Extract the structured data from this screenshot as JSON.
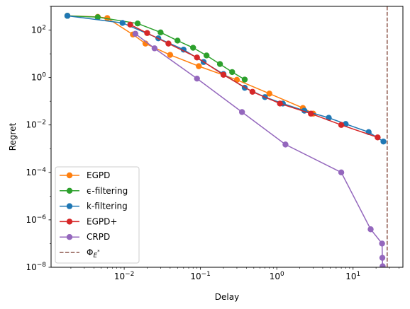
{
  "chart_data": {
    "type": "line",
    "xlabel": "Delay",
    "ylabel": "Regret",
    "xscale": "log",
    "yscale": "log",
    "xlim": [
      0.0011,
      45
    ],
    "ylim": [
      1e-08,
      1000
    ],
    "grid": false,
    "legend_position": "lower-left",
    "x_ticks": [
      {
        "value": 0.01,
        "base": "10",
        "exp": "−2"
      },
      {
        "value": 0.1,
        "base": "10",
        "exp": "−1"
      },
      {
        "value": 1,
        "base": "10",
        "exp": "0"
      },
      {
        "value": 10,
        "base": "10",
        "exp": "1"
      }
    ],
    "y_ticks": [
      {
        "value": 1e-08,
        "base": "10",
        "exp": "−8"
      },
      {
        "value": 1e-06,
        "base": "10",
        "exp": "−6"
      },
      {
        "value": 0.0001,
        "base": "10",
        "exp": "−4"
      },
      {
        "value": 0.01,
        "base": "10",
        "exp": "−2"
      },
      {
        "value": 1,
        "base": "10",
        "exp": "0"
      },
      {
        "value": 100,
        "base": "10",
        "exp": "2"
      }
    ],
    "series": [
      {
        "name": "EGPD",
        "color": "#ff7f0e",
        "marker": "circle",
        "x": [
          0.0018,
          0.0045,
          0.006,
          0.013,
          0.019,
          0.04,
          0.095,
          0.3,
          0.8,
          2.2,
          3.0
        ],
        "y": [
          400,
          360,
          320,
          65,
          27,
          9,
          3,
          0.8,
          0.21,
          0.052,
          0.03
        ]
      },
      {
        "name": "ϵ-filtering",
        "color": "#2ca02c",
        "marker": "circle",
        "x": [
          0.0018,
          0.0045,
          0.015,
          0.03,
          0.05,
          0.08,
          0.12,
          0.18,
          0.26,
          0.38
        ],
        "y": [
          400,
          350,
          190,
          80,
          36,
          18,
          8.5,
          3.7,
          1.7,
          0.82
        ]
      },
      {
        "name": "k-filtering",
        "color": "#1f77b4",
        "marker": "circle",
        "x": [
          0.0018,
          0.0095,
          0.028,
          0.06,
          0.11,
          0.2,
          0.38,
          0.7,
          1.2,
          2.3,
          4.8,
          8.0,
          16.0,
          25.0
        ],
        "y": [
          400,
          200,
          45,
          15,
          4.5,
          1.4,
          0.37,
          0.15,
          0.08,
          0.04,
          0.02,
          0.011,
          0.005,
          0.002
        ]
      },
      {
        "name": "EGPD+",
        "color": "#d62728",
        "marker": "circle",
        "x": [
          0.012,
          0.02,
          0.038,
          0.09,
          0.2,
          0.48,
          1.1,
          2.8,
          7.0,
          21.0
        ],
        "y": [
          170,
          75,
          27,
          7,
          1.3,
          0.25,
          0.08,
          0.03,
          0.01,
          0.003
        ]
      },
      {
        "name": "CRPD",
        "color": "#9467bd",
        "marker": "circle",
        "x": [
          0.014,
          0.025,
          0.09,
          0.35,
          1.3,
          7.0,
          17.0,
          24.0,
          24.2,
          24.4,
          24.5
        ],
        "y": [
          70,
          17,
          0.9,
          0.035,
          0.0015,
          0.0001,
          4e-07,
          1e-07,
          2.5e-08,
          1.1e-08,
          1.01e-08
        ]
      }
    ],
    "vline": {
      "name": "Φ_{E*}",
      "x": 28,
      "color": "#8c564b",
      "style": "dashed"
    }
  }
}
